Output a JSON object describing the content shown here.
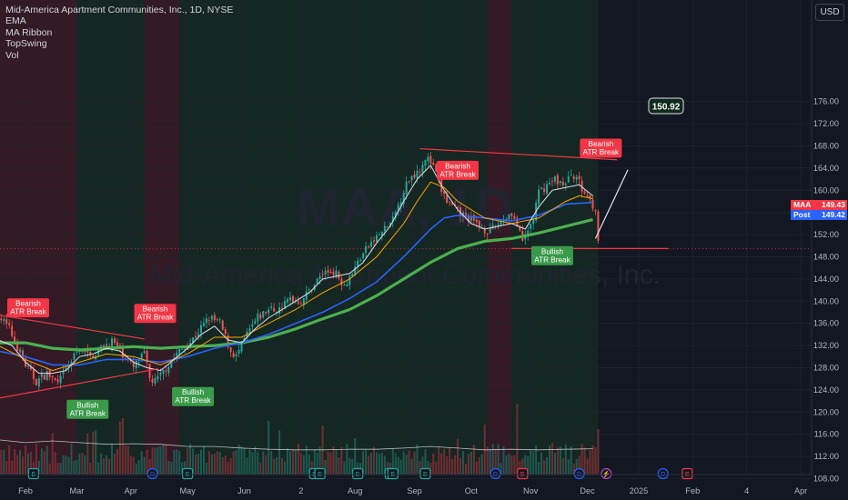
{
  "header": {
    "title": "Mid-America Apartment Communities, Inc., 1D, NYSE",
    "indicators": [
      "EMA",
      "MA Ribbon",
      "TopSwing",
      "Vol"
    ]
  },
  "watermark": {
    "symbol": "MAA, 1D",
    "name": "Mid-America Apartment Communities, Inc."
  },
  "currency": "USD",
  "colors": {
    "background": "#131722",
    "up": "#26a69a",
    "down": "#ef5350",
    "ema_white": "#e0e3eb",
    "ema_orange": "#f7a600",
    "ema_blue": "#2962ff",
    "sma_green": "#4caf50",
    "bear_shade": "#3a1b25",
    "bull_shade": "#162a22",
    "label_bear": "#f23645",
    "label_bull": "#3a9a4a"
  },
  "price_tags": [
    {
      "symbol": "MAA",
      "value": "149.43",
      "color": "#f23645"
    },
    {
      "symbol": "Post",
      "value": "149.42",
      "color": "#2962ff"
    }
  ],
  "target_label": "150.92",
  "chart_data": {
    "type": "candlestick",
    "title": "Mid-America Apartment Communities, Inc., 1D, NYSE",
    "x_ticks": [
      "Feb",
      "Mar",
      "Apr",
      "May",
      "Jun",
      "2",
      "Aug",
      "Sep",
      "Oct",
      "Nov",
      "Dec",
      "2025",
      "Feb",
      "4",
      "Apr"
    ],
    "y_ticks": [
      108,
      112,
      116,
      120,
      124,
      128,
      132,
      136,
      140,
      144,
      148,
      152,
      156,
      160,
      164,
      168,
      172,
      176
    ],
    "ylim": [
      107.2,
      177.8
    ],
    "n_sessions": 228,
    "session_ticks": [
      10,
      29,
      49,
      70,
      91,
      112,
      132,
      154,
      175,
      197,
      218,
      237,
      257,
      277,
      297
    ],
    "price_path": [
      [
        0,
        137.5
      ],
      [
        4,
        135
      ],
      [
        10,
        128.5
      ],
      [
        14,
        125.5
      ],
      [
        18,
        127
      ],
      [
        22,
        125
      ],
      [
        26,
        128.5
      ],
      [
        30,
        131.5
      ],
      [
        34,
        130
      ],
      [
        38,
        131.5
      ],
      [
        42,
        132.8
      ],
      [
        46,
        130.5
      ],
      [
        50,
        128
      ],
      [
        54,
        130.5
      ],
      [
        56,
        126
      ],
      [
        58,
        125.5
      ],
      [
        60,
        126.5
      ],
      [
        62,
        128
      ],
      [
        66,
        130.5
      ],
      [
        70,
        132
      ],
      [
        74,
        134.5
      ],
      [
        78,
        137
      ],
      [
        82,
        136
      ],
      [
        86,
        131
      ],
      [
        88,
        130
      ],
      [
        92,
        134
      ],
      [
        96,
        137
      ],
      [
        100,
        138.5
      ],
      [
        104,
        138.5
      ],
      [
        108,
        140.5
      ],
      [
        112,
        140
      ],
      [
        116,
        142.5
      ],
      [
        120,
        145
      ],
      [
        124,
        145.5
      ],
      [
        128,
        143
      ],
      [
        132,
        146
      ],
      [
        134,
        148
      ],
      [
        138,
        150.5
      ],
      [
        142,
        152.5
      ],
      [
        146,
        154.5
      ],
      [
        150,
        160
      ],
      [
        152,
        162
      ],
      [
        156,
        164
      ],
      [
        158,
        166
      ],
      [
        160,
        165
      ],
      [
        162,
        163
      ],
      [
        164,
        160
      ],
      [
        166,
        158
      ],
      [
        170,
        156
      ],
      [
        174,
        155
      ],
      [
        178,
        153.5
      ],
      [
        182,
        152.5
      ],
      [
        186,
        154.5
      ],
      [
        190,
        156
      ],
      [
        192,
        153.5
      ],
      [
        194,
        150.5
      ],
      [
        198,
        155
      ],
      [
        200,
        159.5
      ],
      [
        202,
        160.5
      ],
      [
        206,
        162
      ],
      [
        210,
        161
      ],
      [
        212,
        163
      ],
      [
        214,
        162.5
      ],
      [
        216,
        160
      ],
      [
        218,
        159
      ],
      [
        220,
        157.5
      ],
      [
        221,
        156.5
      ],
      [
        222,
        150.3
      ]
    ],
    "ema_fast": [
      [
        0,
        133
      ],
      [
        5,
        132
      ],
      [
        10,
        129
      ],
      [
        15,
        127
      ],
      [
        20,
        127
      ],
      [
        25,
        127.5
      ],
      [
        30,
        130
      ],
      [
        35,
        130.5
      ],
      [
        40,
        131.5
      ],
      [
        45,
        131
      ],
      [
        50,
        129
      ],
      [
        55,
        128
      ],
      [
        60,
        127.5
      ],
      [
        65,
        129.5
      ],
      [
        70,
        131.5
      ],
      [
        75,
        134
      ],
      [
        80,
        135.5
      ],
      [
        85,
        133
      ],
      [
        90,
        132.5
      ],
      [
        95,
        135
      ],
      [
        100,
        137
      ],
      [
        105,
        138.5
      ],
      [
        110,
        140
      ],
      [
        115,
        141.5
      ],
      [
        120,
        144
      ],
      [
        125,
        144.5
      ],
      [
        130,
        145
      ],
      [
        135,
        147
      ],
      [
        140,
        150.5
      ],
      [
        145,
        153.5
      ],
      [
        150,
        158
      ],
      [
        155,
        162
      ],
      [
        160,
        164.5
      ],
      [
        165,
        160
      ],
      [
        170,
        156.5
      ],
      [
        175,
        154
      ],
      [
        180,
        153
      ],
      [
        185,
        153.5
      ],
      [
        190,
        154
      ],
      [
        195,
        153
      ],
      [
        200,
        157
      ],
      [
        205,
        160
      ],
      [
        210,
        160.5
      ],
      [
        215,
        161
      ],
      [
        220,
        159
      ]
    ],
    "ema_mid": [
      [
        0,
        132
      ],
      [
        10,
        129.5
      ],
      [
        20,
        127.5
      ],
      [
        30,
        129
      ],
      [
        40,
        130.5
      ],
      [
        50,
        130
      ],
      [
        60,
        128.5
      ],
      [
        70,
        130.5
      ],
      [
        80,
        133.5
      ],
      [
        90,
        133.5
      ],
      [
        100,
        136
      ],
      [
        110,
        138.5
      ],
      [
        120,
        141.5
      ],
      [
        130,
        144
      ],
      [
        140,
        148
      ],
      [
        150,
        154
      ],
      [
        155,
        158
      ],
      [
        160,
        161.5
      ],
      [
        165,
        160.5
      ],
      [
        170,
        158
      ],
      [
        180,
        155
      ],
      [
        190,
        154
      ],
      [
        200,
        155
      ],
      [
        210,
        158
      ],
      [
        215,
        159
      ],
      [
        220,
        158.5
      ]
    ],
    "ema_slow": [
      [
        0,
        131
      ],
      [
        10,
        130
      ],
      [
        20,
        128.5
      ],
      [
        30,
        128.5
      ],
      [
        40,
        129.5
      ],
      [
        50,
        129.5
      ],
      [
        60,
        129
      ],
      [
        70,
        130
      ],
      [
        80,
        131.5
      ],
      [
        90,
        132.5
      ],
      [
        100,
        134
      ],
      [
        110,
        136
      ],
      [
        120,
        138
      ],
      [
        130,
        140.5
      ],
      [
        140,
        143.5
      ],
      [
        150,
        148
      ],
      [
        160,
        153
      ],
      [
        165,
        155
      ],
      [
        170,
        155.5
      ],
      [
        180,
        155
      ],
      [
        190,
        154.5
      ],
      [
        200,
        155.5
      ],
      [
        210,
        157.5
      ],
      [
        220,
        157.8
      ]
    ],
    "sma_long": [
      [
        0,
        132.5
      ],
      [
        10,
        132.5
      ],
      [
        20,
        131.5
      ],
      [
        30,
        131.2
      ],
      [
        40,
        131.5
      ],
      [
        50,
        131.8
      ],
      [
        60,
        131.5
      ],
      [
        70,
        131.8
      ],
      [
        80,
        132
      ],
      [
        90,
        132.5
      ],
      [
        100,
        133.5
      ],
      [
        110,
        135
      ],
      [
        120,
        136.8
      ],
      [
        130,
        138.5
      ],
      [
        140,
        141
      ],
      [
        150,
        144
      ],
      [
        160,
        147
      ],
      [
        170,
        149.5
      ],
      [
        180,
        150.8
      ],
      [
        190,
        151.3
      ],
      [
        200,
        152.3
      ],
      [
        210,
        153.5
      ],
      [
        220,
        154.7
      ]
    ],
    "volume_avg": [
      [
        0,
        115
      ],
      [
        10,
        114.5
      ],
      [
        20,
        114.8
      ],
      [
        30,
        114.5
      ],
      [
        40,
        114.2
      ],
      [
        50,
        114.3
      ],
      [
        60,
        114.2
      ],
      [
        70,
        113.8
      ],
      [
        80,
        113.8
      ],
      [
        90,
        113.5
      ],
      [
        100,
        113.3
      ],
      [
        110,
        113.2
      ],
      [
        120,
        113.2
      ],
      [
        130,
        113.3
      ],
      [
        140,
        113.3
      ],
      [
        150,
        113.5
      ],
      [
        160,
        113.8
      ],
      [
        170,
        113.5
      ],
      [
        180,
        113.2
      ],
      [
        190,
        113.3
      ],
      [
        200,
        113.2
      ],
      [
        210,
        113.3
      ],
      [
        220,
        113.4
      ]
    ],
    "shaded_regions": [
      {
        "start": 0,
        "end": 29,
        "kind": "bear"
      },
      {
        "start": 29,
        "end": 54,
        "kind": "bull"
      },
      {
        "start": 54,
        "end": 67,
        "kind": "bear"
      },
      {
        "start": 67,
        "end": 181,
        "kind": "bull"
      },
      {
        "start": 181,
        "end": 190,
        "kind": "bear"
      },
      {
        "start": 190,
        "end": 222,
        "kind": "bull"
      }
    ],
    "trendlines": [
      {
        "points": [
          [
            0,
            137.5
          ],
          [
            54,
            133.2
          ]
        ],
        "color": "#f23645"
      },
      {
        "points": [
          [
            0,
            122.5
          ],
          [
            59,
            127.8
          ]
        ],
        "color": "#f23645"
      },
      {
        "points": [
          [
            156,
            167.5
          ],
          [
            229,
            165.5
          ]
        ],
        "color": "#f23645"
      },
      {
        "points": [
          [
            190,
            149.5
          ],
          [
            248,
            149.5
          ]
        ],
        "color": "#f23645"
      },
      {
        "points": [
          [
            221,
            151.3
          ],
          [
            233,
            163.7
          ]
        ],
        "color": "#e0e3eb"
      }
    ],
    "annotations": [
      {
        "text": [
          "Bearish",
          "ATR Break"
        ],
        "kind": "bear",
        "x": 11,
        "y": 138.8
      },
      {
        "text": [
          "Bearish",
          "ATR Break"
        ],
        "kind": "bear",
        "x": 58,
        "y": 137.8
      },
      {
        "text": [
          "Bullish",
          "ATR Break"
        ],
        "kind": "bull",
        "x": 33,
        "y": 120.5
      },
      {
        "text": [
          "Bullish",
          "ATR Break"
        ],
        "kind": "bull",
        "x": 72,
        "y": 122.8
      },
      {
        "text": [
          "Bearish",
          "ATR Break"
        ],
        "kind": "bear",
        "x": 170,
        "y": 163.6
      },
      {
        "text": [
          "Bullish",
          "ATR Break"
        ],
        "kind": "bull",
        "x": 205,
        "y": 148.2
      },
      {
        "text": [
          "Bearish",
          "ATR Break"
        ],
        "kind": "bear",
        "x": 223,
        "y": 167.6
      }
    ],
    "event_markers": [
      {
        "x": 13,
        "label": "E"
      },
      {
        "x": 57,
        "label": "D"
      },
      {
        "x": 70,
        "label": "E"
      },
      {
        "x": 117,
        "label": "E"
      },
      {
        "x": 119,
        "label": "E"
      },
      {
        "x": 133,
        "label": "E"
      },
      {
        "x": 145,
        "label": "E"
      },
      {
        "x": 146,
        "label": "E"
      },
      {
        "x": 158,
        "label": "E"
      },
      {
        "x": 184,
        "label": "D"
      },
      {
        "x": 194,
        "label": "E"
      },
      {
        "x": 215,
        "label": "D"
      },
      {
        "x": 225,
        "label": "⚡"
      },
      {
        "x": 246,
        "label": "D"
      },
      {
        "x": 255,
        "label": "E"
      }
    ]
  }
}
